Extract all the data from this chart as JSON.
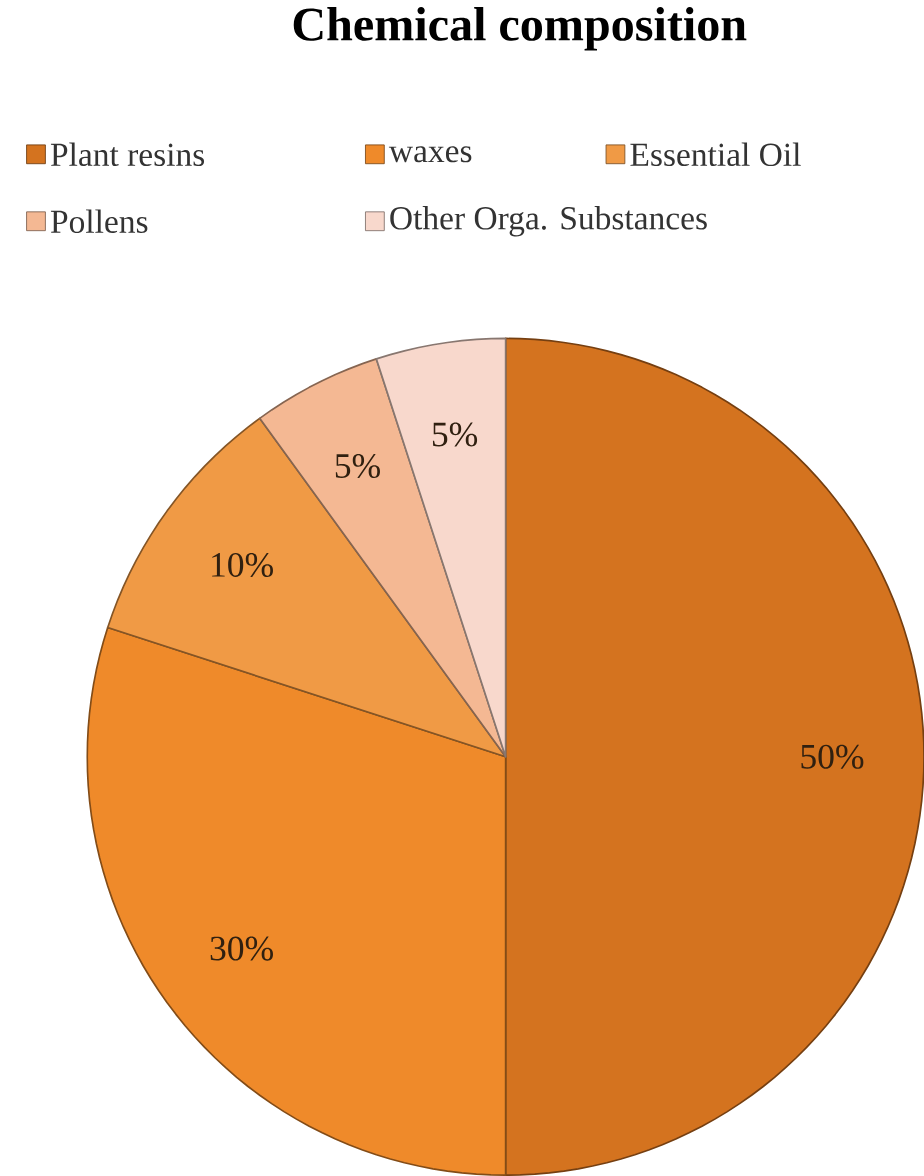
{
  "chart_data": {
    "type": "pie",
    "title": "Chemical composition",
    "categories": [
      "Plant resins",
      "waxes",
      "Essential Oil",
      "Pollens",
      "Other Orga. Substances"
    ],
    "values": [
      50,
      30,
      10,
      5,
      5
    ],
    "value_labels": [
      "50%",
      "30%",
      "10%",
      "5%",
      "5%"
    ],
    "colors": [
      "#d4731f",
      "#ef8a2a",
      "#f09a45",
      "#f4b893",
      "#f8d8cc"
    ],
    "legend": "top"
  }
}
